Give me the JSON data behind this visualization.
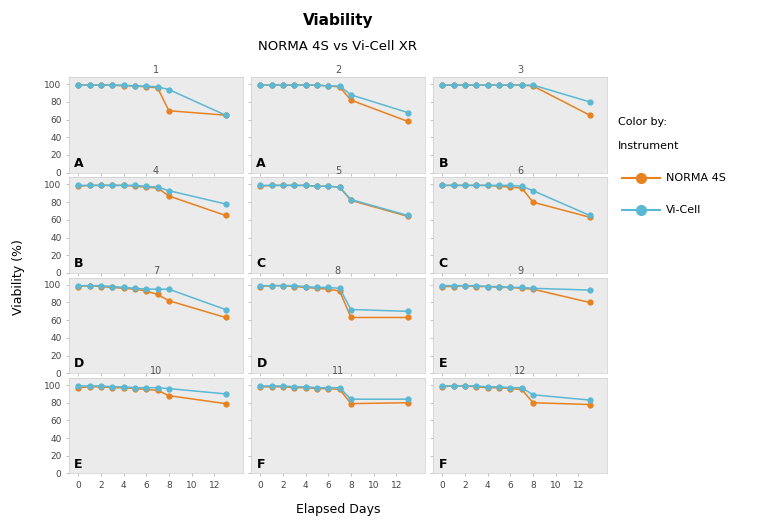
{
  "title": "Viability",
  "subtitle": "NORMA 4S vs Vi-Cell XR",
  "xlabel": "Elapsed Days",
  "ylabel": "Viability (%)",
  "legend_title": "Color by:\nInstrument",
  "norma_color": "#E8811F",
  "vicell_color": "#5BB8D4",
  "bg_color": "#EBEBEB",
  "x_days": [
    0,
    1,
    2,
    3,
    4,
    5,
    6,
    7,
    8,
    9,
    10,
    11,
    13
  ],
  "subplots": [
    {
      "id": 1,
      "row": 0,
      "col": 0,
      "label": "A",
      "norma": [
        99,
        99,
        99,
        99,
        98,
        98,
        97,
        96,
        70,
        null,
        null,
        null,
        65
      ],
      "vicell": [
        99,
        99,
        99,
        99,
        99,
        98,
        98,
        97,
        94,
        null,
        null,
        null,
        65
      ]
    },
    {
      "id": 2,
      "row": 0,
      "col": 1,
      "label": "A",
      "norma": [
        99,
        99,
        99,
        99,
        99,
        99,
        98,
        97,
        82,
        null,
        null,
        null,
        58
      ],
      "vicell": [
        99,
        99,
        99,
        99,
        99,
        99,
        98,
        98,
        88,
        null,
        null,
        null,
        68
      ]
    },
    {
      "id": 3,
      "row": 0,
      "col": 2,
      "label": "B",
      "norma": [
        99,
        99,
        99,
        99,
        99,
        99,
        99,
        99,
        98,
        null,
        null,
        null,
        65
      ],
      "vicell": [
        99,
        99,
        99,
        99,
        99,
        99,
        99,
        99,
        99,
        null,
        null,
        null,
        80
      ]
    },
    {
      "id": 4,
      "row": 1,
      "col": 0,
      "label": "B",
      "norma": [
        98,
        99,
        99,
        99,
        99,
        98,
        97,
        96,
        87,
        null,
        null,
        null,
        65
      ],
      "vicell": [
        99,
        99,
        99,
        99,
        99,
        99,
        98,
        97,
        93,
        null,
        null,
        null,
        78
      ]
    },
    {
      "id": 5,
      "row": 1,
      "col": 1,
      "label": "C",
      "norma": [
        98,
        99,
        99,
        99,
        99,
        98,
        98,
        97,
        82,
        null,
        null,
        null,
        64
      ],
      "vicell": [
        99,
        99,
        99,
        99,
        99,
        98,
        98,
        97,
        83,
        null,
        null,
        null,
        65
      ]
    },
    {
      "id": 6,
      "row": 1,
      "col": 2,
      "label": "C",
      "norma": [
        99,
        99,
        99,
        99,
        99,
        98,
        97,
        96,
        80,
        null,
        null,
        null,
        63
      ],
      "vicell": [
        99,
        99,
        99,
        99,
        99,
        99,
        99,
        98,
        93,
        null,
        null,
        null,
        65
      ]
    },
    {
      "id": 7,
      "row": 2,
      "col": 0,
      "label": "D",
      "norma": [
        98,
        99,
        98,
        97,
        96,
        95,
        93,
        89,
        82,
        null,
        null,
        null,
        63
      ],
      "vicell": [
        99,
        99,
        99,
        98,
        97,
        96,
        95,
        95,
        95,
        null,
        null,
        null,
        72
      ]
    },
    {
      "id": 8,
      "row": 2,
      "col": 1,
      "label": "D",
      "norma": [
        98,
        99,
        99,
        98,
        97,
        96,
        95,
        93,
        63,
        null,
        null,
        null,
        63
      ],
      "vicell": [
        99,
        99,
        99,
        99,
        98,
        97,
        97,
        96,
        72,
        null,
        null,
        null,
        70
      ]
    },
    {
      "id": 9,
      "row": 2,
      "col": 2,
      "label": "E",
      "norma": [
        98,
        98,
        99,
        98,
        98,
        97,
        97,
        96,
        95,
        null,
        null,
        null,
        80
      ],
      "vicell": [
        99,
        99,
        99,
        99,
        98,
        98,
        97,
        97,
        96,
        null,
        null,
        null,
        94
      ]
    },
    {
      "id": 10,
      "row": 3,
      "col": 0,
      "label": "E",
      "norma": [
        97,
        98,
        98,
        97,
        97,
        96,
        95,
        94,
        88,
        null,
        null,
        null,
        79
      ],
      "vicell": [
        99,
        99,
        99,
        98,
        98,
        97,
        97,
        97,
        96,
        null,
        null,
        null,
        90
      ]
    },
    {
      "id": 11,
      "row": 3,
      "col": 1,
      "label": "F",
      "norma": [
        98,
        98,
        98,
        97,
        97,
        96,
        96,
        95,
        79,
        null,
        null,
        null,
        80
      ],
      "vicell": [
        99,
        99,
        99,
        98,
        98,
        97,
        97,
        97,
        84,
        null,
        null,
        null,
        84
      ]
    },
    {
      "id": 12,
      "row": 3,
      "col": 2,
      "label": "F",
      "norma": [
        98,
        99,
        99,
        98,
        97,
        97,
        96,
        95,
        80,
        null,
        null,
        null,
        78
      ],
      "vicell": [
        99,
        99,
        99,
        99,
        98,
        98,
        97,
        97,
        89,
        null,
        null,
        null,
        83
      ]
    }
  ],
  "yticks": [
    0,
    20,
    40,
    60,
    80,
    100
  ],
  "xticks": [
    0,
    2,
    4,
    6,
    8,
    10,
    12
  ],
  "xlim": [
    -0.8,
    14.5
  ],
  "ylim": [
    0,
    108
  ]
}
